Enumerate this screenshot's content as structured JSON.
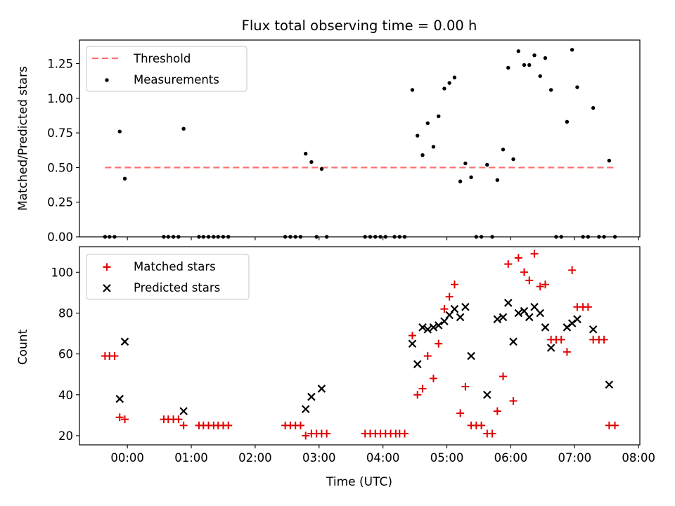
{
  "title": "Flux total observing time = 0.00 h",
  "colors": {
    "threshold": "#ff6f6f",
    "measurement": "#000000",
    "matched": "#e00000",
    "predicted": "#000000"
  },
  "chart_data": [
    {
      "type": "scatter",
      "title": "Flux total observing time = 0.00 h",
      "xlabel": "",
      "ylabel": "Matched/Predicted stars",
      "xlim": [
        -0.75,
        8.02
      ],
      "ylim": [
        0,
        1.42
      ],
      "x_ticks": [
        0,
        1,
        2,
        3,
        4,
        5,
        6,
        7,
        8
      ],
      "y_ticks": [
        0,
        0.25,
        0.5,
        0.75,
        1.0,
        1.25
      ],
      "y_tick_labels": [
        "0.00",
        "0.25",
        "0.50",
        "0.75",
        "1.00",
        "1.25"
      ],
      "legend": {
        "position": "top-left",
        "entries": [
          "Threshold",
          "Measurements"
        ]
      },
      "threshold": {
        "name": "Threshold",
        "y": 0.5,
        "x_range": [
          -0.35,
          7.63
        ],
        "style": "dashed"
      },
      "series": [
        {
          "name": "Measurements",
          "points": [
            [
              -0.35,
              0
            ],
            [
              -0.28,
              0
            ],
            [
              -0.2,
              0
            ],
            [
              -0.12,
              0.76
            ],
            [
              -0.04,
              0.42
            ],
            [
              0.57,
              0
            ],
            [
              0.64,
              0
            ],
            [
              0.72,
              0
            ],
            [
              0.8,
              0
            ],
            [
              0.88,
              0.78
            ],
            [
              1.12,
              0
            ],
            [
              1.19,
              0
            ],
            [
              1.27,
              0
            ],
            [
              1.35,
              0
            ],
            [
              1.42,
              0
            ],
            [
              1.5,
              0
            ],
            [
              1.58,
              0
            ],
            [
              2.47,
              0
            ],
            [
              2.55,
              0
            ],
            [
              2.63,
              0
            ],
            [
              2.71,
              0
            ],
            [
              2.79,
              0.6
            ],
            [
              2.88,
              0.54
            ],
            [
              2.96,
              0
            ],
            [
              3.04,
              0.49
            ],
            [
              3.12,
              0
            ],
            [
              3.72,
              0
            ],
            [
              3.8,
              0
            ],
            [
              3.88,
              0
            ],
            [
              3.96,
              0
            ],
            [
              4.04,
              0
            ],
            [
              4.18,
              0
            ],
            [
              4.26,
              0
            ],
            [
              4.34,
              0
            ],
            [
              4.46,
              1.06
            ],
            [
              4.54,
              0.73
            ],
            [
              4.62,
              0.59
            ],
            [
              4.7,
              0.82
            ],
            [
              4.79,
              0.65
            ],
            [
              4.87,
              0.87
            ],
            [
              4.96,
              1.07
            ],
            [
              5.04,
              1.11
            ],
            [
              5.12,
              1.15
            ],
            [
              5.21,
              0.4
            ],
            [
              5.29,
              0.53
            ],
            [
              5.38,
              0.43
            ],
            [
              5.46,
              0
            ],
            [
              5.54,
              0
            ],
            [
              5.63,
              0.52
            ],
            [
              5.71,
              0
            ],
            [
              5.79,
              0.41
            ],
            [
              5.88,
              0.63
            ],
            [
              5.96,
              1.22
            ],
            [
              6.04,
              0.56
            ],
            [
              6.12,
              1.34
            ],
            [
              6.21,
              1.24
            ],
            [
              6.29,
              1.24
            ],
            [
              6.37,
              1.31
            ],
            [
              6.46,
              1.16
            ],
            [
              6.54,
              1.29
            ],
            [
              6.63,
              1.06
            ],
            [
              6.71,
              0
            ],
            [
              6.79,
              0
            ],
            [
              6.88,
              0.83
            ],
            [
              6.96,
              1.35
            ],
            [
              7.04,
              1.08
            ],
            [
              7.13,
              0
            ],
            [
              7.21,
              0
            ],
            [
              7.29,
              0.93
            ],
            [
              7.38,
              0
            ],
            [
              7.46,
              0
            ],
            [
              7.54,
              0.55
            ],
            [
              7.63,
              0
            ]
          ]
        }
      ]
    },
    {
      "type": "scatter",
      "title": "",
      "xlabel": "Time (UTC)",
      "ylabel": "Count",
      "xlim": [
        -0.75,
        8.02
      ],
      "ylim": [
        15.5,
        112.5
      ],
      "x_ticks": [
        0,
        1,
        2,
        3,
        4,
        5,
        6,
        7,
        8
      ],
      "x_tick_labels": [
        "00:00",
        "01:00",
        "02:00",
        "03:00",
        "04:00",
        "05:00",
        "06:00",
        "07:00",
        "08:00"
      ],
      "y_ticks": [
        20,
        40,
        60,
        80,
        100
      ],
      "y_tick_labels": [
        "20",
        "40",
        "60",
        "80",
        "100"
      ],
      "legend": {
        "position": "top-left",
        "entries": [
          "Matched stars",
          "Predicted stars"
        ]
      },
      "series": [
        {
          "name": "Matched stars",
          "marker": "plus",
          "points": [
            [
              -0.35,
              59
            ],
            [
              -0.28,
              59
            ],
            [
              -0.2,
              59
            ],
            [
              -0.12,
              29
            ],
            [
              -0.04,
              28
            ],
            [
              0.57,
              28
            ],
            [
              0.64,
              28
            ],
            [
              0.72,
              28
            ],
            [
              0.8,
              28
            ],
            [
              0.88,
              25
            ],
            [
              1.12,
              25
            ],
            [
              1.19,
              25
            ],
            [
              1.27,
              25
            ],
            [
              1.35,
              25
            ],
            [
              1.42,
              25
            ],
            [
              1.5,
              25
            ],
            [
              1.58,
              25
            ],
            [
              2.47,
              25
            ],
            [
              2.55,
              25
            ],
            [
              2.63,
              25
            ],
            [
              2.71,
              25
            ],
            [
              2.79,
              20
            ],
            [
              2.88,
              21
            ],
            [
              2.96,
              21
            ],
            [
              3.04,
              21
            ],
            [
              3.12,
              21
            ],
            [
              3.72,
              21
            ],
            [
              3.8,
              21
            ],
            [
              3.88,
              21
            ],
            [
              3.96,
              21
            ],
            [
              4.04,
              21
            ],
            [
              4.12,
              21
            ],
            [
              4.2,
              21
            ],
            [
              4.26,
              21
            ],
            [
              4.34,
              21
            ],
            [
              4.46,
              69
            ],
            [
              4.54,
              40
            ],
            [
              4.62,
              43
            ],
            [
              4.7,
              59
            ],
            [
              4.79,
              48
            ],
            [
              4.87,
              65
            ],
            [
              4.96,
              82
            ],
            [
              5.04,
              88
            ],
            [
              5.12,
              94
            ],
            [
              5.21,
              31
            ],
            [
              5.29,
              44
            ],
            [
              5.38,
              25
            ],
            [
              5.46,
              25
            ],
            [
              5.54,
              25
            ],
            [
              5.63,
              21
            ],
            [
              5.71,
              21
            ],
            [
              5.79,
              32
            ],
            [
              5.88,
              49
            ],
            [
              5.96,
              104
            ],
            [
              6.04,
              37
            ],
            [
              6.12,
              107
            ],
            [
              6.21,
              100
            ],
            [
              6.29,
              96
            ],
            [
              6.37,
              109
            ],
            [
              6.46,
              93
            ],
            [
              6.54,
              94
            ],
            [
              6.63,
              67
            ],
            [
              6.71,
              67
            ],
            [
              6.79,
              67
            ],
            [
              6.88,
              61
            ],
            [
              6.96,
              101
            ],
            [
              7.04,
              83
            ],
            [
              7.13,
              83
            ],
            [
              7.21,
              83
            ],
            [
              7.29,
              67
            ],
            [
              7.38,
              67
            ],
            [
              7.46,
              67
            ],
            [
              7.54,
              25
            ],
            [
              7.63,
              25
            ]
          ]
        },
        {
          "name": "Predicted stars",
          "marker": "x",
          "points": [
            [
              -0.12,
              38
            ],
            [
              -0.04,
              66
            ],
            [
              0.88,
              32
            ],
            [
              2.79,
              33
            ],
            [
              2.88,
              39
            ],
            [
              3.04,
              43
            ],
            [
              4.46,
              65
            ],
            [
              4.54,
              55
            ],
            [
              4.62,
              73
            ],
            [
              4.7,
              72
            ],
            [
              4.79,
              73
            ],
            [
              4.87,
              74
            ],
            [
              4.96,
              76
            ],
            [
              5.04,
              79
            ],
            [
              5.12,
              82
            ],
            [
              5.21,
              78
            ],
            [
              5.29,
              83
            ],
            [
              5.38,
              59
            ],
            [
              5.63,
              40
            ],
            [
              5.79,
              77
            ],
            [
              5.88,
              78
            ],
            [
              5.96,
              85
            ],
            [
              6.04,
              66
            ],
            [
              6.12,
              80
            ],
            [
              6.21,
              81
            ],
            [
              6.29,
              78
            ],
            [
              6.37,
              83
            ],
            [
              6.46,
              80
            ],
            [
              6.54,
              73
            ],
            [
              6.63,
              63
            ],
            [
              6.88,
              73
            ],
            [
              6.96,
              75
            ],
            [
              7.04,
              77
            ],
            [
              7.29,
              72
            ],
            [
              7.54,
              45
            ]
          ]
        }
      ]
    }
  ]
}
